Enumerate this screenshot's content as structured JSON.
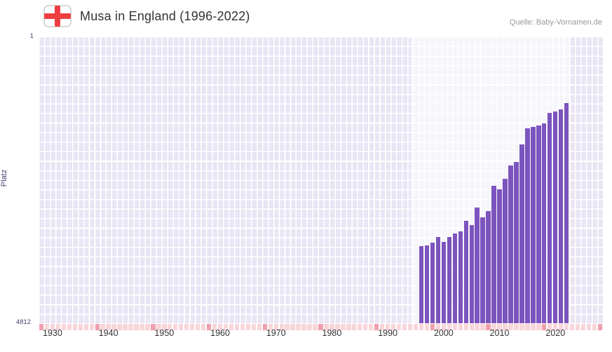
{
  "header": {
    "title": "Musa in England (1996-2022)",
    "source": "Quelle: Baby-Vornamen.de"
  },
  "chart_data": {
    "type": "bar",
    "title": "Musa in England (1996-2022)",
    "ylabel": "Platz",
    "y_axis": {
      "top_label": "1",
      "bottom_label": "4812",
      "min": 1,
      "max": 4812,
      "inverted": true
    },
    "x_axis": {
      "tick_labels": [
        "1930",
        "1940",
        "1950",
        "1960",
        "1970",
        "1980",
        "1990",
        "2000",
        "2010",
        "2020"
      ],
      "range_start": 1928,
      "range_end": 2029
    },
    "highlight_range": [
      1994.6,
      2023.2
    ],
    "series": [
      {
        "name": "Platz",
        "x": [
          1996,
          1997,
          1998,
          1999,
          2000,
          2001,
          2002,
          2003,
          2004,
          2005,
          2006,
          2007,
          2008,
          2009,
          2010,
          2011,
          2012,
          2013,
          2014,
          2015,
          2016,
          2017,
          2018,
          2019,
          2020,
          2021,
          2022
        ],
        "values": [
          3520,
          3510,
          3460,
          3370,
          3450,
          3360,
          3310,
          3270,
          3100,
          3160,
          2870,
          3040,
          2930,
          2510,
          2570,
          2390,
          2160,
          2110,
          1810,
          1540,
          1520,
          1500,
          1460,
          1280,
          1260,
          1230,
          1120
        ]
      }
    ],
    "colors": {
      "bar": "#7c54bd",
      "grid_cell": "#e9e5f4",
      "highlight": "rgba(255,255,255,0.6)",
      "strip_light": "#f8d5da",
      "strip_dark": "#efa0ab",
      "axis_text": "#44406e",
      "tick_text": "#333333",
      "flag_red": "#ef3e42"
    }
  }
}
